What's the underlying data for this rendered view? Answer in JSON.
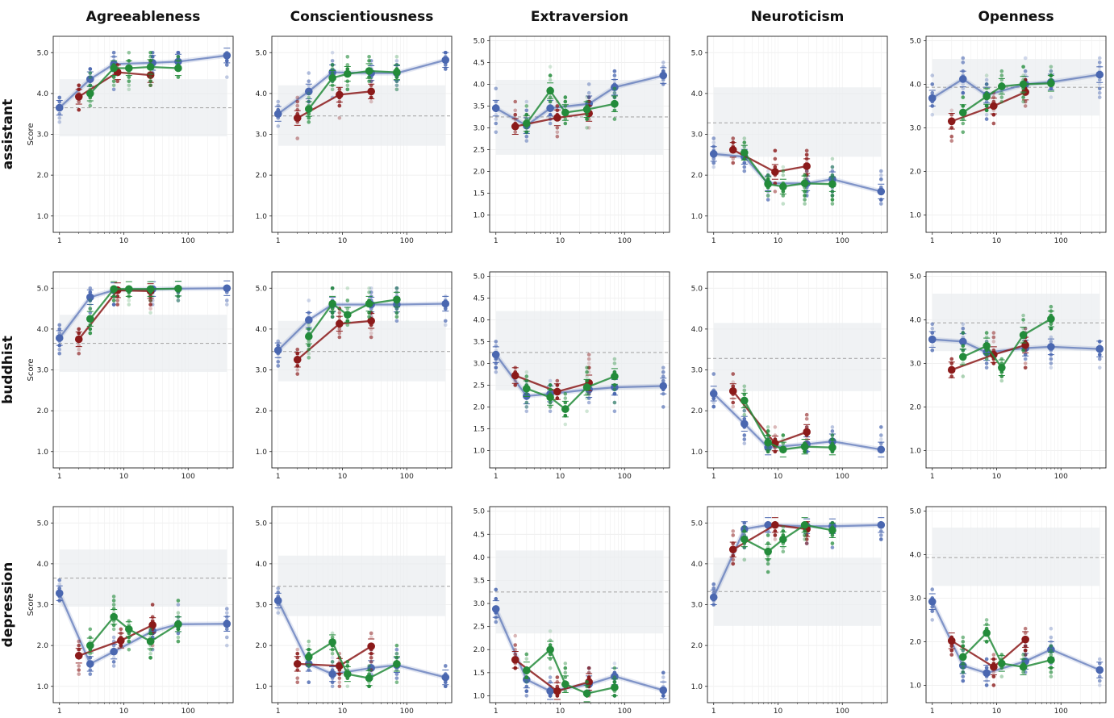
{
  "column_titles": [
    "Agreeableness",
    "Conscientiousness",
    "Extraversion",
    "Neuroticism",
    "Openness"
  ],
  "row_titles": [
    "assistant",
    "buddhist",
    "depression"
  ],
  "y_axis_label": "Score",
  "colors": {
    "blue": "#4a67b0",
    "red": "#8b1a1a",
    "green": "#238b3a",
    "reference": "#aaaaaa",
    "band": "#e9ecef"
  },
  "chart_data": {
    "type": "line",
    "x_scale": "log",
    "x_ticks": [
      1,
      10,
      100
    ],
    "x_tick_labels": [
      "1",
      "10",
      "100"
    ],
    "xlim": [
      0.8,
      500
    ],
    "grid": true,
    "series_colors": [
      "blue",
      "red",
      "green"
    ],
    "panels": [
      {
        "row": "assistant",
        "column": "Agreeableness",
        "ylim": [
          0.6,
          5.4
        ],
        "y_ticks": [
          1,
          2,
          3,
          4,
          5
        ],
        "reference": 3.65,
        "band": [
          2.95,
          4.35
        ],
        "series": [
          {
            "x": [
              1,
              3,
              7,
              28,
              70,
              400
            ],
            "y": [
              3.65,
              4.35,
              4.72,
              4.75,
              4.78,
              4.93
            ]
          },
          {
            "x": [
              2,
              8,
              26
            ],
            "y": [
              3.92,
              4.52,
              4.45
            ]
          },
          {
            "x": [
              3,
              7,
              12,
              26,
              70
            ],
            "y": [
              4.0,
              4.62,
              4.62,
              4.65,
              4.62
            ]
          }
        ]
      },
      {
        "row": "assistant",
        "column": "Conscientiousness",
        "ylim": [
          0.6,
          5.4
        ],
        "y_ticks": [
          1,
          2,
          3,
          4,
          5
        ],
        "reference": 3.45,
        "band": [
          2.72,
          4.2
        ],
        "series": [
          {
            "x": [
              1,
              3,
              7,
              28,
              70,
              400
            ],
            "y": [
              3.5,
              4.05,
              4.52,
              4.5,
              4.5,
              4.82
            ]
          },
          {
            "x": [
              2,
              9,
              28
            ],
            "y": [
              3.4,
              3.97,
              4.05
            ]
          },
          {
            "x": [
              3,
              7,
              12,
              26,
              70
            ],
            "y": [
              3.62,
              4.38,
              4.48,
              4.55,
              4.52
            ]
          }
        ]
      },
      {
        "row": "assistant",
        "column": "Extraversion",
        "ylim": [
          0.6,
          5.1
        ],
        "y_ticks": [
          1,
          1.5,
          2,
          2.5,
          3,
          3.5,
          4,
          4.5,
          5
        ],
        "reference": 3.25,
        "band": [
          2.38,
          4.1
        ],
        "series": [
          {
            "x": [
              1,
              3,
              7,
              28,
              70,
              400
            ],
            "y": [
              3.45,
              3.05,
              3.45,
              3.55,
              3.93,
              4.2
            ]
          },
          {
            "x": [
              2,
              9,
              28
            ],
            "y": [
              3.03,
              3.23,
              3.33
            ]
          },
          {
            "x": [
              3,
              7,
              12,
              26,
              70
            ],
            "y": [
              3.1,
              3.85,
              3.35,
              3.42,
              3.55
            ]
          }
        ]
      },
      {
        "row": "assistant",
        "column": "Neuroticism",
        "ylim": [
          0.6,
          5.4
        ],
        "y_ticks": [
          1,
          2,
          3,
          4,
          5
        ],
        "reference": 3.28,
        "band": [
          2.45,
          4.15
        ],
        "series": [
          {
            "x": [
              1,
              3,
              7,
              28,
              70,
              400
            ],
            "y": [
              2.52,
              2.45,
              1.8,
              1.8,
              1.9,
              1.6
            ]
          },
          {
            "x": [
              2,
              9,
              28
            ],
            "y": [
              2.62,
              2.08,
              2.22
            ]
          },
          {
            "x": [
              3,
              7,
              12,
              26,
              70
            ],
            "y": [
              2.55,
              1.78,
              1.72,
              1.8,
              1.78
            ]
          }
        ]
      },
      {
        "row": "assistant",
        "column": "Openness",
        "ylim": [
          0.6,
          5.1
        ],
        "y_ticks": [
          1,
          2,
          3,
          4,
          5
        ],
        "reference": 3.93,
        "band": [
          3.28,
          4.58
        ],
        "series": [
          {
            "x": [
              1,
              3,
              7,
              28,
              70,
              400
            ],
            "y": [
              3.68,
              4.12,
              3.75,
              4.0,
              4.05,
              4.22
            ]
          },
          {
            "x": [
              2,
              9,
              28
            ],
            "y": [
              3.15,
              3.5,
              3.82
            ]
          },
          {
            "x": [
              3,
              7,
              12,
              26,
              70
            ],
            "y": [
              3.35,
              3.72,
              3.95,
              4.0,
              4.02
            ]
          }
        ]
      },
      {
        "row": "buddhist",
        "column": "Agreeableness",
        "ylim": [
          0.6,
          5.4
        ],
        "y_ticks": [
          1,
          2,
          3,
          4,
          5
        ],
        "reference": 3.65,
        "band": [
          2.95,
          4.35
        ],
        "series": [
          {
            "x": [
              1,
              3,
              7,
              28,
              70,
              400
            ],
            "y": [
              3.78,
              4.78,
              4.95,
              4.98,
              4.99,
              5.0
            ]
          },
          {
            "x": [
              2,
              8,
              26
            ],
            "y": [
              3.75,
              4.95,
              4.93
            ]
          },
          {
            "x": [
              3,
              7,
              12,
              26,
              70
            ],
            "y": [
              4.25,
              4.98,
              4.98,
              4.98,
              4.99
            ]
          }
        ]
      },
      {
        "row": "buddhist",
        "column": "Conscientiousness",
        "ylim": [
          0.6,
          5.4
        ],
        "y_ticks": [
          1,
          2,
          3,
          4,
          5
        ],
        "reference": 3.45,
        "band": [
          2.72,
          4.2
        ],
        "series": [
          {
            "x": [
              1,
              3,
              7,
              28,
              70,
              400
            ],
            "y": [
              3.48,
              4.22,
              4.6,
              4.6,
              4.6,
              4.62
            ]
          },
          {
            "x": [
              2,
              9,
              28
            ],
            "y": [
              3.25,
              4.13,
              4.2
            ]
          },
          {
            "x": [
              3,
              7,
              12,
              26,
              70
            ],
            "y": [
              3.82,
              4.62,
              4.35,
              4.62,
              4.72
            ]
          }
        ]
      },
      {
        "row": "buddhist",
        "column": "Extraversion",
        "ylim": [
          0.6,
          5.1
        ],
        "y_ticks": [
          1,
          1.5,
          2,
          2.5,
          3,
          3.5,
          4,
          4.5,
          5
        ],
        "reference": 3.25,
        "band": [
          2.38,
          4.2
        ],
        "series": [
          {
            "x": [
              1,
              3,
              7,
              28,
              70,
              400
            ],
            "y": [
              3.2,
              2.25,
              2.3,
              2.4,
              2.45,
              2.48
            ]
          },
          {
            "x": [
              2,
              9,
              28
            ],
            "y": [
              2.72,
              2.35,
              2.55
            ]
          },
          {
            "x": [
              3,
              7,
              12,
              26,
              70
            ],
            "y": [
              2.42,
              2.22,
              1.95,
              2.45,
              2.7
            ]
          }
        ]
      },
      {
        "row": "buddhist",
        "column": "Neuroticism",
        "ylim": [
          0.6,
          5.4
        ],
        "y_ticks": [
          1,
          2,
          3,
          4,
          5
        ],
        "reference": 3.28,
        "band": [
          2.48,
          4.15
        ],
        "series": [
          {
            "x": [
              1,
              3,
              7,
              28,
              70,
              400
            ],
            "y": [
              2.42,
              1.68,
              1.1,
              1.18,
              1.25,
              1.05
            ]
          },
          {
            "x": [
              2,
              9,
              28
            ],
            "y": [
              2.48,
              1.2,
              1.48
            ]
          },
          {
            "x": [
              3,
              7,
              12,
              26,
              70
            ],
            "y": [
              2.25,
              1.22,
              1.05,
              1.12,
              1.1
            ]
          }
        ]
      },
      {
        "row": "buddhist",
        "column": "Openness",
        "ylim": [
          0.6,
          5.1
        ],
        "y_ticks": [
          1,
          2,
          3,
          4,
          5
        ],
        "reference": 3.93,
        "band": [
          3.28,
          4.6
        ],
        "series": [
          {
            "x": [
              1,
              3,
              7,
              28,
              70,
              400
            ],
            "y": [
              3.55,
              3.5,
              3.25,
              3.35,
              3.38,
              3.33
            ]
          },
          {
            "x": [
              2,
              9,
              28
            ],
            "y": [
              2.85,
              3.2,
              3.42
            ]
          },
          {
            "x": [
              3,
              7,
              12,
              26,
              70
            ],
            "y": [
              3.15,
              3.4,
              2.9,
              3.65,
              4.02
            ]
          }
        ]
      },
      {
        "row": "depression",
        "column": "Agreeableness",
        "ylim": [
          0.6,
          5.4
        ],
        "y_ticks": [
          1,
          2,
          3,
          4,
          5
        ],
        "reference": 3.65,
        "band": [
          2.95,
          4.35
        ],
        "series": [
          {
            "x": [
              1,
              3,
              7,
              28,
              70,
              400
            ],
            "y": [
              3.28,
              1.55,
              1.85,
              2.35,
              2.52,
              2.53
            ]
          },
          {
            "x": [
              2,
              9,
              28
            ],
            "y": [
              1.75,
              2.12,
              2.5
            ]
          },
          {
            "x": [
              3,
              7,
              12,
              26,
              70
            ],
            "y": [
              2.0,
              2.7,
              2.4,
              2.1,
              2.52
            ]
          }
        ]
      },
      {
        "row": "depression",
        "column": "Conscientiousness",
        "ylim": [
          0.6,
          5.4
        ],
        "y_ticks": [
          1,
          2,
          3,
          4,
          5
        ],
        "reference": 3.45,
        "band": [
          2.72,
          4.2
        ],
        "series": [
          {
            "x": [
              1,
              3,
              7,
              28,
              70,
              400
            ],
            "y": [
              3.1,
              1.55,
              1.3,
              1.45,
              1.52,
              1.22
            ]
          },
          {
            "x": [
              2,
              9,
              28
            ],
            "y": [
              1.55,
              1.5,
              1.98
            ]
          },
          {
            "x": [
              3,
              7,
              12,
              26,
              70
            ],
            "y": [
              1.72,
              2.08,
              1.3,
              1.2,
              1.55
            ]
          }
        ]
      },
      {
        "row": "depression",
        "column": "Extraversion",
        "ylim": [
          0.85,
          5.1
        ],
        "y_ticks": [
          1,
          1.5,
          2,
          2.5,
          3,
          3.5,
          4,
          4.5,
          5
        ],
        "reference": 3.25,
        "band": [
          2.35,
          4.15
        ],
        "series": [
          {
            "x": [
              1,
              3,
              7,
              28,
              70,
              400
            ],
            "y": [
              2.88,
              1.35,
              1.1,
              1.25,
              1.42,
              1.12
            ]
          },
          {
            "x": [
              2,
              9,
              28
            ],
            "y": [
              1.78,
              1.1,
              1.3
            ]
          },
          {
            "x": [
              3,
              7,
              12,
              26,
              70
            ],
            "y": [
              1.55,
              2.0,
              1.25,
              1.05,
              1.18
            ]
          }
        ]
      },
      {
        "row": "depression",
        "column": "Neuroticism",
        "ylim": [
          0.6,
          5.4
        ],
        "y_ticks": [
          1,
          2,
          3,
          4,
          5
        ],
        "reference": 3.32,
        "band": [
          2.48,
          4.15
        ],
        "series": [
          {
            "x": [
              1,
              3,
              7,
              28,
              70,
              400
            ],
            "y": [
              3.18,
              4.85,
              4.95,
              4.92,
              4.92,
              4.95
            ]
          },
          {
            "x": [
              2,
              9,
              28
            ],
            "y": [
              4.35,
              4.95,
              4.85
            ]
          },
          {
            "x": [
              3,
              7,
              12,
              26,
              70
            ],
            "y": [
              4.6,
              4.3,
              4.6,
              4.95,
              4.82
            ]
          }
        ]
      },
      {
        "row": "depression",
        "column": "Openness",
        "ylim": [
          0.6,
          5.1
        ],
        "y_ticks": [
          1,
          2,
          3,
          4,
          5
        ],
        "reference": 3.93,
        "band": [
          3.28,
          4.62
        ],
        "series": [
          {
            "x": [
              1,
              3,
              7,
              28,
              70,
              400
            ],
            "y": [
              2.92,
              1.45,
              1.28,
              1.55,
              1.82,
              1.35
            ]
          },
          {
            "x": [
              2,
              9,
              28
            ],
            "y": [
              2.02,
              1.42,
              2.05
            ]
          },
          {
            "x": [
              3,
              7,
              12,
              26,
              70
            ],
            "y": [
              1.65,
              2.2,
              1.5,
              1.42,
              1.58
            ]
          }
        ]
      }
    ]
  }
}
